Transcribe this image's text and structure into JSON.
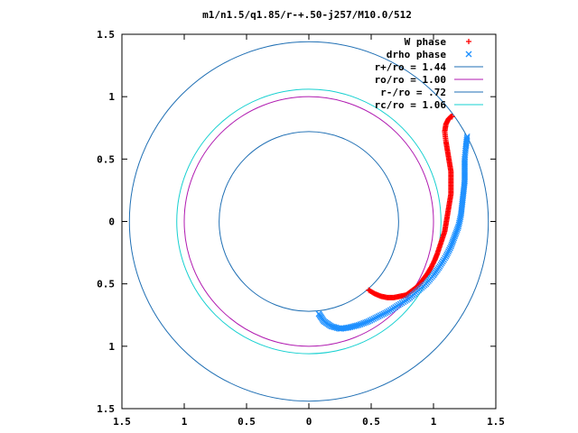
{
  "chart_data": {
    "type": "scatter",
    "title": "m1/n1.5/q1.85/r-+.50-j257/M10.0/512",
    "xlabel": "",
    "ylabel": "",
    "xlim": [
      -1.5,
      1.5
    ],
    "ylim": [
      -1.5,
      1.5
    ],
    "x_ticks": [
      -1.5,
      -1,
      -0.5,
      0,
      0.5,
      1,
      1.5
    ],
    "y_ticks": [
      1.5,
      1,
      0.5,
      0,
      -0.5,
      -1,
      -1.5
    ],
    "x_tick_labels": [
      "1.5",
      "1",
      "0.5",
      "0",
      "0.5",
      "1",
      "1.5"
    ],
    "y_tick_labels": [
      "1.5",
      "1",
      "0.5",
      "0",
      "0.5",
      "1",
      "1.5"
    ],
    "grid": false,
    "legend_position": "top-right",
    "circles": [
      {
        "name": "r+/ro = 1.44",
        "radius": 1.44,
        "color": "#1f6fb4"
      },
      {
        "name": "ro/ro = 1.00",
        "radius": 1.0,
        "color": "#b01ab0"
      },
      {
        "name": "r-/ro = .72",
        "radius": 0.72,
        "color": "#1f6fb4"
      },
      {
        "name": "rc/ro = 1.06",
        "radius": 1.06,
        "color": "#16d0d0"
      }
    ],
    "series": [
      {
        "name": "W phase",
        "marker": "plus",
        "color": "#ff0000",
        "x": [
          0.48,
          0.53,
          0.58,
          0.63,
          0.68,
          0.73,
          0.78,
          0.82,
          0.86,
          0.89,
          0.92,
          0.95,
          0.98,
          1.01,
          1.03,
          1.05,
          1.07,
          1.09,
          1.1,
          1.11,
          1.12,
          1.13,
          1.14,
          1.14,
          1.14,
          1.14,
          1.13,
          1.12,
          1.11,
          1.1,
          1.09,
          1.1,
          1.12,
          1.14,
          1.15
        ],
        "y": [
          -0.55,
          -0.58,
          -0.6,
          -0.61,
          -0.61,
          -0.6,
          -0.59,
          -0.56,
          -0.53,
          -0.5,
          -0.46,
          -0.42,
          -0.37,
          -0.31,
          -0.26,
          -0.2,
          -0.14,
          -0.08,
          -0.02,
          0.04,
          0.1,
          0.16,
          0.22,
          0.28,
          0.34,
          0.4,
          0.46,
          0.52,
          0.58,
          0.64,
          0.72,
          0.78,
          0.82,
          0.84,
          0.84
        ]
      },
      {
        "name": "drho phase",
        "marker": "x",
        "color": "#1e90ff",
        "x": [
          0.08,
          0.12,
          0.18,
          0.25,
          0.32,
          0.4,
          0.48,
          0.56,
          0.64,
          0.72,
          0.8,
          0.87,
          0.94,
          1.0,
          1.05,
          1.1,
          1.14,
          1.17,
          1.2,
          1.22,
          1.23,
          1.24,
          1.25,
          1.25,
          1.25,
          1.26,
          1.27
        ],
        "y": [
          -0.74,
          -0.8,
          -0.84,
          -0.86,
          -0.85,
          -0.83,
          -0.8,
          -0.76,
          -0.72,
          -0.67,
          -0.62,
          -0.56,
          -0.5,
          -0.43,
          -0.36,
          -0.28,
          -0.2,
          -0.12,
          -0.04,
          0.05,
          0.14,
          0.23,
          0.32,
          0.41,
          0.5,
          0.6,
          0.68
        ]
      }
    ]
  }
}
